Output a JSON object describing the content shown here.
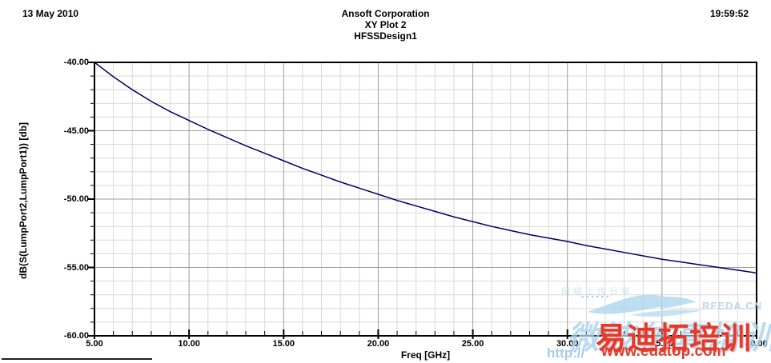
{
  "header": {
    "date": "13 May 2010",
    "company": "Ansoft Corporation",
    "plot_title": "XY Plot 2",
    "design": "HFSSDesign1",
    "time": "19:59:52"
  },
  "colors": {
    "curve": "#00006a",
    "grid_minor": "#d9d9d9",
    "grid_major": "#9e9e9e",
    "axis": "#000000",
    "watermark_blue": "#a9d3ec",
    "watermark_red": "#e23b2e"
  },
  "watermark": {
    "faint_text": "网络上传分享",
    "squares": "▪▪▪▪▪▪",
    "rfeda": "RFEDA.CN",
    "script_text": "微波仿真培训",
    "http_prefix": "http://",
    "url": "www.edatop.com",
    "red_brand": "易迪拓培训",
    "bird_icon": "swallow-logo"
  },
  "chart_data": {
    "type": "line",
    "title": "XY Plot 2",
    "subtitle": "HFSSDesign1",
    "xlabel": "Freq [GHz]",
    "ylabel": "dB(S(LumpPort2,LumpPort1)) [db]",
    "xlim": [
      5,
      40
    ],
    "ylim": [
      -60,
      -40
    ],
    "x_major_ticks": [
      5,
      10,
      15,
      20,
      25,
      30,
      35,
      40
    ],
    "y_major_ticks": [
      -40,
      -45,
      -50,
      -55,
      -60
    ],
    "x_minor_step": 1,
    "y_minor_step": 1,
    "tick_format_decimals": 2,
    "grid": "major+minor",
    "legend": "none",
    "series": [
      {
        "name": "dB(S(LumpPort2,LumpPort1))",
        "x": [
          5,
          6,
          7,
          8,
          9,
          10,
          11,
          12,
          13,
          14,
          15,
          16,
          17,
          18,
          19,
          20,
          21,
          22,
          23,
          24,
          25,
          26,
          27,
          28,
          29,
          30,
          31,
          32,
          33,
          34,
          35,
          36,
          37,
          38,
          39,
          40
        ],
        "y": [
          -40.0,
          -41.05,
          -42.0,
          -42.85,
          -43.6,
          -44.25,
          -44.9,
          -45.5,
          -46.1,
          -46.65,
          -47.2,
          -47.75,
          -48.25,
          -48.75,
          -49.2,
          -49.65,
          -50.1,
          -50.5,
          -50.9,
          -51.3,
          -51.65,
          -52.0,
          -52.3,
          -52.6,
          -52.85,
          -53.1,
          -53.4,
          -53.65,
          -53.9,
          -54.15,
          -54.4,
          -54.6,
          -54.8,
          -55.0,
          -55.2,
          -55.4
        ]
      }
    ]
  }
}
